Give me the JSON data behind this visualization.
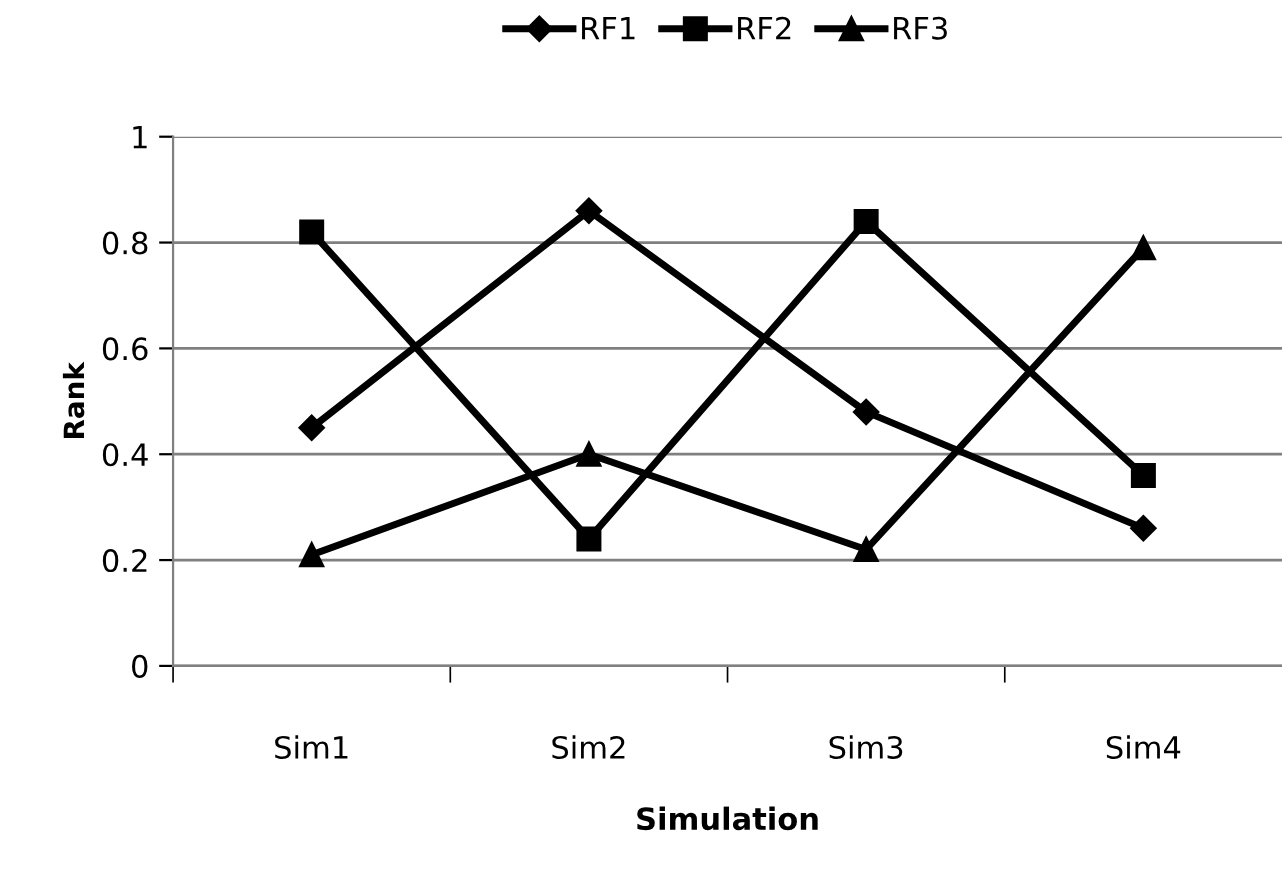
{
  "chart_data": {
    "type": "line",
    "xlabel": "Simulation",
    "ylabel": "Rank",
    "categories": [
      "Sim1",
      "Sim2",
      "Sim3",
      "Sim4"
    ],
    "series": [
      {
        "name": "RF1",
        "color": "#000000",
        "marker": "diamond",
        "values": [
          0.45,
          0.86,
          0.48,
          0.26
        ]
      },
      {
        "name": "RF2",
        "color": "#000000",
        "marker": "square",
        "values": [
          0.82,
          0.24,
          0.84,
          0.36
        ]
      },
      {
        "name": "RF3",
        "color": "#000000",
        "marker": "triangle",
        "values": [
          0.21,
          0.4,
          0.22,
          0.79
        ]
      }
    ],
    "ylim": [
      0,
      1
    ],
    "yticks": [
      0,
      0.2,
      0.4,
      0.6,
      0.8,
      1
    ],
    "grid": "y",
    "legend": "top"
  }
}
